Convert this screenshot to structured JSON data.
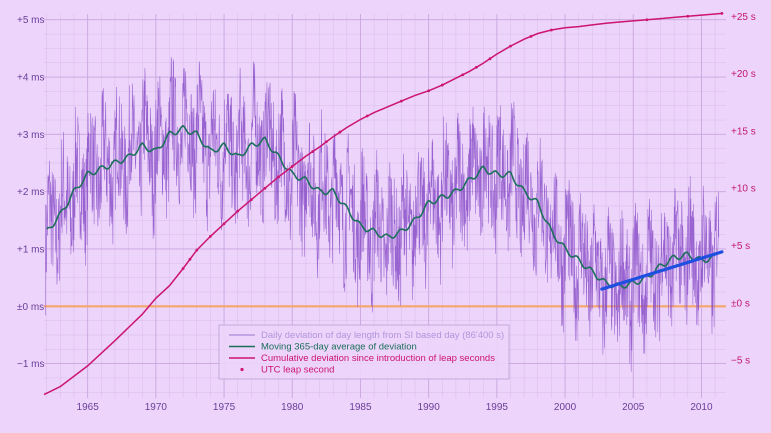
{
  "chart_data": {
    "type": "line",
    "colors": {
      "background": "#ecd4fa",
      "grid": "#c6a2dc",
      "left_axis_text": "#6a3f9a",
      "right_axis_text": "#c2186f",
      "daily": "#8a4fc8",
      "moving_average": "#1c6f5a",
      "cumulative": "#cc1470",
      "leap_marker": "#cc1470",
      "zero_line": "#f5a66a",
      "trend": "#1f4fe0"
    },
    "x_axis": {
      "range": [
        1961.8,
        2011.8
      ],
      "ticks": [
        "1965",
        "1970",
        "1975",
        "1980",
        "1985",
        "1990",
        "1995",
        "2000",
        "2005",
        "2010"
      ]
    },
    "left_axis": {
      "unit": "ms",
      "range": [
        -1.6,
        5.1
      ],
      "ticks": [
        "+5 ms",
        "+4 ms",
        "+3 ms",
        "+2 ms",
        "+1 ms",
        "±0 ms",
        "−1 ms"
      ]
    },
    "right_axis": {
      "unit": "s",
      "range": [
        -8.3,
        25.2
      ],
      "ticks": [
        "+25 s",
        "+20 s",
        "+15 s",
        "+10 s",
        "+5 s",
        "±0 s",
        "−5 s"
      ]
    },
    "series": [
      {
        "name": "Daily deviation of day length from SI based day (86'400 s)",
        "axis": "left",
        "mean_x": [
          1962.0,
          1963.0,
          1964.0,
          1965.0,
          1966.0,
          1967.0,
          1968.0,
          1969.0,
          1970.0,
          1971.0,
          1972.0,
          1973.0,
          1974.0,
          1975.0,
          1976.0,
          1977.0,
          1978.0,
          1979.0,
          1980.0,
          1981.0,
          1982.0,
          1983.0,
          1984.0,
          1985.0,
          1986.0,
          1987.0,
          1988.0,
          1989.0,
          1990.0,
          1991.0,
          1992.0,
          1993.0,
          1994.0,
          1995.0,
          1996.0,
          1997.0,
          1998.0,
          1999.0,
          2000.0,
          2001.0,
          2002.0,
          2003.0,
          2004.0,
          2005.0,
          2006.0,
          2007.0,
          2008.0,
          2009.0,
          2010.0,
          2011.0
        ],
        "mean_y": [
          1.3,
          1.6,
          2.0,
          2.3,
          2.4,
          2.5,
          2.6,
          2.8,
          2.7,
          3.0,
          3.1,
          3.0,
          2.7,
          2.8,
          2.6,
          2.8,
          2.9,
          2.6,
          2.3,
          2.2,
          2.0,
          2.0,
          1.7,
          1.4,
          1.3,
          1.2,
          1.3,
          1.5,
          1.8,
          1.9,
          2.0,
          2.2,
          2.4,
          2.3,
          2.3,
          2.0,
          1.8,
          1.3,
          1.0,
          0.8,
          0.6,
          0.4,
          0.35,
          0.4,
          0.5,
          0.7,
          0.85,
          0.9,
          0.8,
          0.85
        ],
        "amplitude_ms": 1.0
      },
      {
        "name": "Moving 365-day average of deviation",
        "axis": "left",
        "x": [
          1962.0,
          1963.0,
          1964.0,
          1965.0,
          1966.0,
          1967.0,
          1968.0,
          1969.0,
          1970.0,
          1971.0,
          1972.0,
          1973.0,
          1974.0,
          1975.0,
          1976.0,
          1977.0,
          1978.0,
          1979.0,
          1980.0,
          1981.0,
          1982.0,
          1983.0,
          1984.0,
          1985.0,
          1986.0,
          1987.0,
          1988.0,
          1989.0,
          1990.0,
          1991.0,
          1992.0,
          1993.0,
          1994.0,
          1995.0,
          1996.0,
          1997.0,
          1998.0,
          1999.0,
          2000.0,
          2001.0,
          2002.0,
          2003.0,
          2004.0,
          2005.0,
          2006.0,
          2007.0,
          2008.0,
          2009.0,
          2010.0,
          2011.0
        ],
        "y": [
          1.3,
          1.6,
          2.0,
          2.3,
          2.4,
          2.5,
          2.6,
          2.8,
          2.7,
          3.0,
          3.1,
          3.0,
          2.7,
          2.8,
          2.6,
          2.8,
          2.9,
          2.6,
          2.3,
          2.2,
          2.0,
          2.0,
          1.7,
          1.4,
          1.3,
          1.2,
          1.3,
          1.5,
          1.8,
          1.9,
          2.0,
          2.2,
          2.4,
          2.3,
          2.3,
          2.0,
          1.8,
          1.3,
          1.0,
          0.8,
          0.6,
          0.4,
          0.35,
          0.4,
          0.5,
          0.7,
          0.85,
          0.9,
          0.8,
          0.85
        ]
      },
      {
        "name": "Cumulative deviation since introduction of leap seconds",
        "axis": "right",
        "x": [
          1961.8,
          1963,
          1965,
          1967,
          1969,
          1970,
          1971,
          1972,
          1973,
          1974,
          1975,
          1976,
          1977,
          1978,
          1979,
          1980,
          1981,
          1982,
          1983,
          1984,
          1985,
          1986,
          1987,
          1988,
          1989,
          1990,
          1991,
          1992,
          1993,
          1994,
          1995,
          1996,
          1997,
          1998,
          1999,
          2000,
          2001,
          2002,
          2003,
          2004,
          2005,
          2006,
          2007,
          2008,
          2009,
          2010,
          2011,
          2011.5
        ],
        "y": [
          -8.0,
          -7.3,
          -5.5,
          -3.3,
          -1.0,
          0.4,
          1.5,
          3.0,
          4.6,
          5.8,
          6.9,
          8.0,
          9.0,
          10.0,
          11.0,
          11.9,
          12.8,
          13.6,
          14.5,
          15.3,
          16.0,
          16.6,
          17.1,
          17.6,
          18.1,
          18.5,
          19.0,
          19.6,
          20.2,
          20.9,
          21.7,
          22.4,
          23.0,
          23.5,
          23.8,
          24.0,
          24.1,
          24.25,
          24.4,
          24.5,
          24.6,
          24.7,
          24.8,
          24.9,
          25.0,
          25.1,
          25.2,
          25.25
        ]
      },
      {
        "name": "UTC leap second",
        "axis": "right",
        "x": [
          1972.0,
          1972.5,
          1973.0,
          1974.0,
          1975.0,
          1976.0,
          1977.0,
          1978.0,
          1979.0,
          1980.0,
          1981.5,
          1982.5,
          1983.5,
          1985.5,
          1988.0,
          1990.0,
          1991.0,
          1992.5,
          1993.5,
          1994.5,
          1996.0,
          1997.5,
          1999.0,
          2006.0,
          2009.0,
          2011.5
        ],
        "y": [
          1.0,
          1.5,
          2.0,
          3.0,
          4.0,
          5.0,
          6.0,
          7.0,
          8.0,
          9.0,
          10.0,
          11.0,
          12.0,
          13.0,
          14.0,
          15.0,
          16.0,
          17.0,
          18.0,
          19.0,
          20.0,
          21.0,
          22.0,
          23.0,
          24.0,
          25.0
        ]
      },
      {
        "name": "Trend 2003–2011",
        "axis": "left",
        "x": [
          2002.7,
          2011.5
        ],
        "y": [
          0.3,
          0.95
        ]
      }
    ],
    "legend": {
      "position": "bottom-center",
      "items": [
        {
          "label": "Daily deviation of day length from SI based day (86'400 s)",
          "style": "line",
          "color": "#b395dc"
        },
        {
          "label": "Moving 365-day average of deviation",
          "style": "line",
          "color": "#1c6f5a"
        },
        {
          "label": "Cumulative deviation since introduction of leap seconds",
          "style": "line",
          "color": "#cc1470"
        },
        {
          "label": "UTC leap second",
          "style": "marker",
          "color": "#cc1470"
        }
      ]
    }
  }
}
